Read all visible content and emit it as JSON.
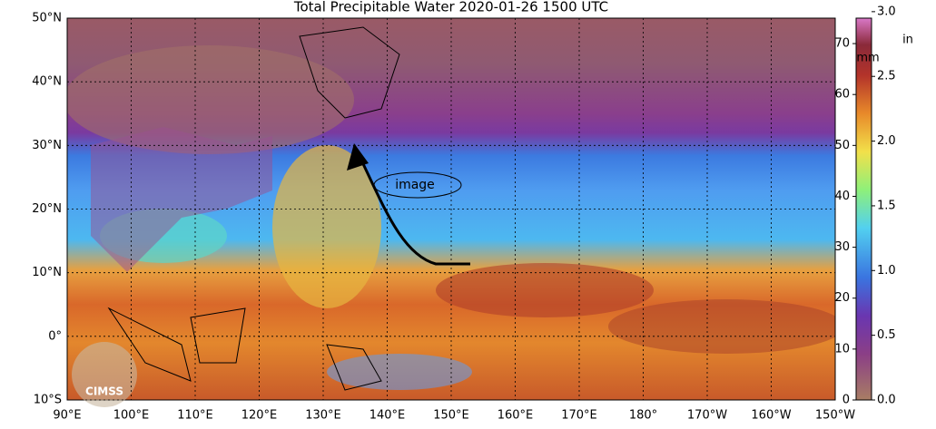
{
  "title": "Total Precipitable Water  2020-01-26 1500 UTC",
  "map": {
    "lon_lim": [
      90,
      210
    ],
    "lat_lim": [
      -10,
      50
    ],
    "lon_ticks": [
      {
        "value": 90,
        "label": "90°E"
      },
      {
        "value": 100,
        "label": "100°E"
      },
      {
        "value": 110,
        "label": "110°E"
      },
      {
        "value": 120,
        "label": "120°E"
      },
      {
        "value": 130,
        "label": "130°E"
      },
      {
        "value": 140,
        "label": "140°E"
      },
      {
        "value": 150,
        "label": "150°E"
      },
      {
        "value": 160,
        "label": "160°E"
      },
      {
        "value": 170,
        "label": "170°E"
      },
      {
        "value": 180,
        "label": "180°"
      },
      {
        "value": 190,
        "label": "170°W"
      },
      {
        "value": 200,
        "label": "160°W"
      },
      {
        "value": 210,
        "label": "150°W"
      }
    ],
    "lat_ticks": [
      {
        "value": 50,
        "label": "50°N"
      },
      {
        "value": 40,
        "label": "40°N"
      },
      {
        "value": 30,
        "label": "30°N"
      },
      {
        "value": 20,
        "label": "20°N"
      },
      {
        "value": 10,
        "label": "10°N"
      },
      {
        "value": 0,
        "label": "0°"
      },
      {
        "value": -10,
        "label": "10°S"
      }
    ]
  },
  "colorbar": {
    "mm_lim": [
      0,
      75
    ],
    "mm_ticks": [
      0,
      10,
      20,
      30,
      40,
      50,
      60,
      70
    ],
    "mm_unit": "mm",
    "in_lim": [
      0,
      2.95
    ],
    "in_ticks": [
      {
        "value": 0,
        "label": "0.0"
      },
      {
        "value": 0.5,
        "label": "0.5"
      },
      {
        "value": 1,
        "label": "1.0"
      },
      {
        "value": 1.5,
        "label": "1.5"
      },
      {
        "value": 2,
        "label": "2.0"
      },
      {
        "value": 2.5,
        "label": "2.5"
      },
      {
        "value": 3,
        "label": "3.0"
      }
    ],
    "in_unit": "in"
  },
  "annotation": "image",
  "logo": "CIMSS"
}
